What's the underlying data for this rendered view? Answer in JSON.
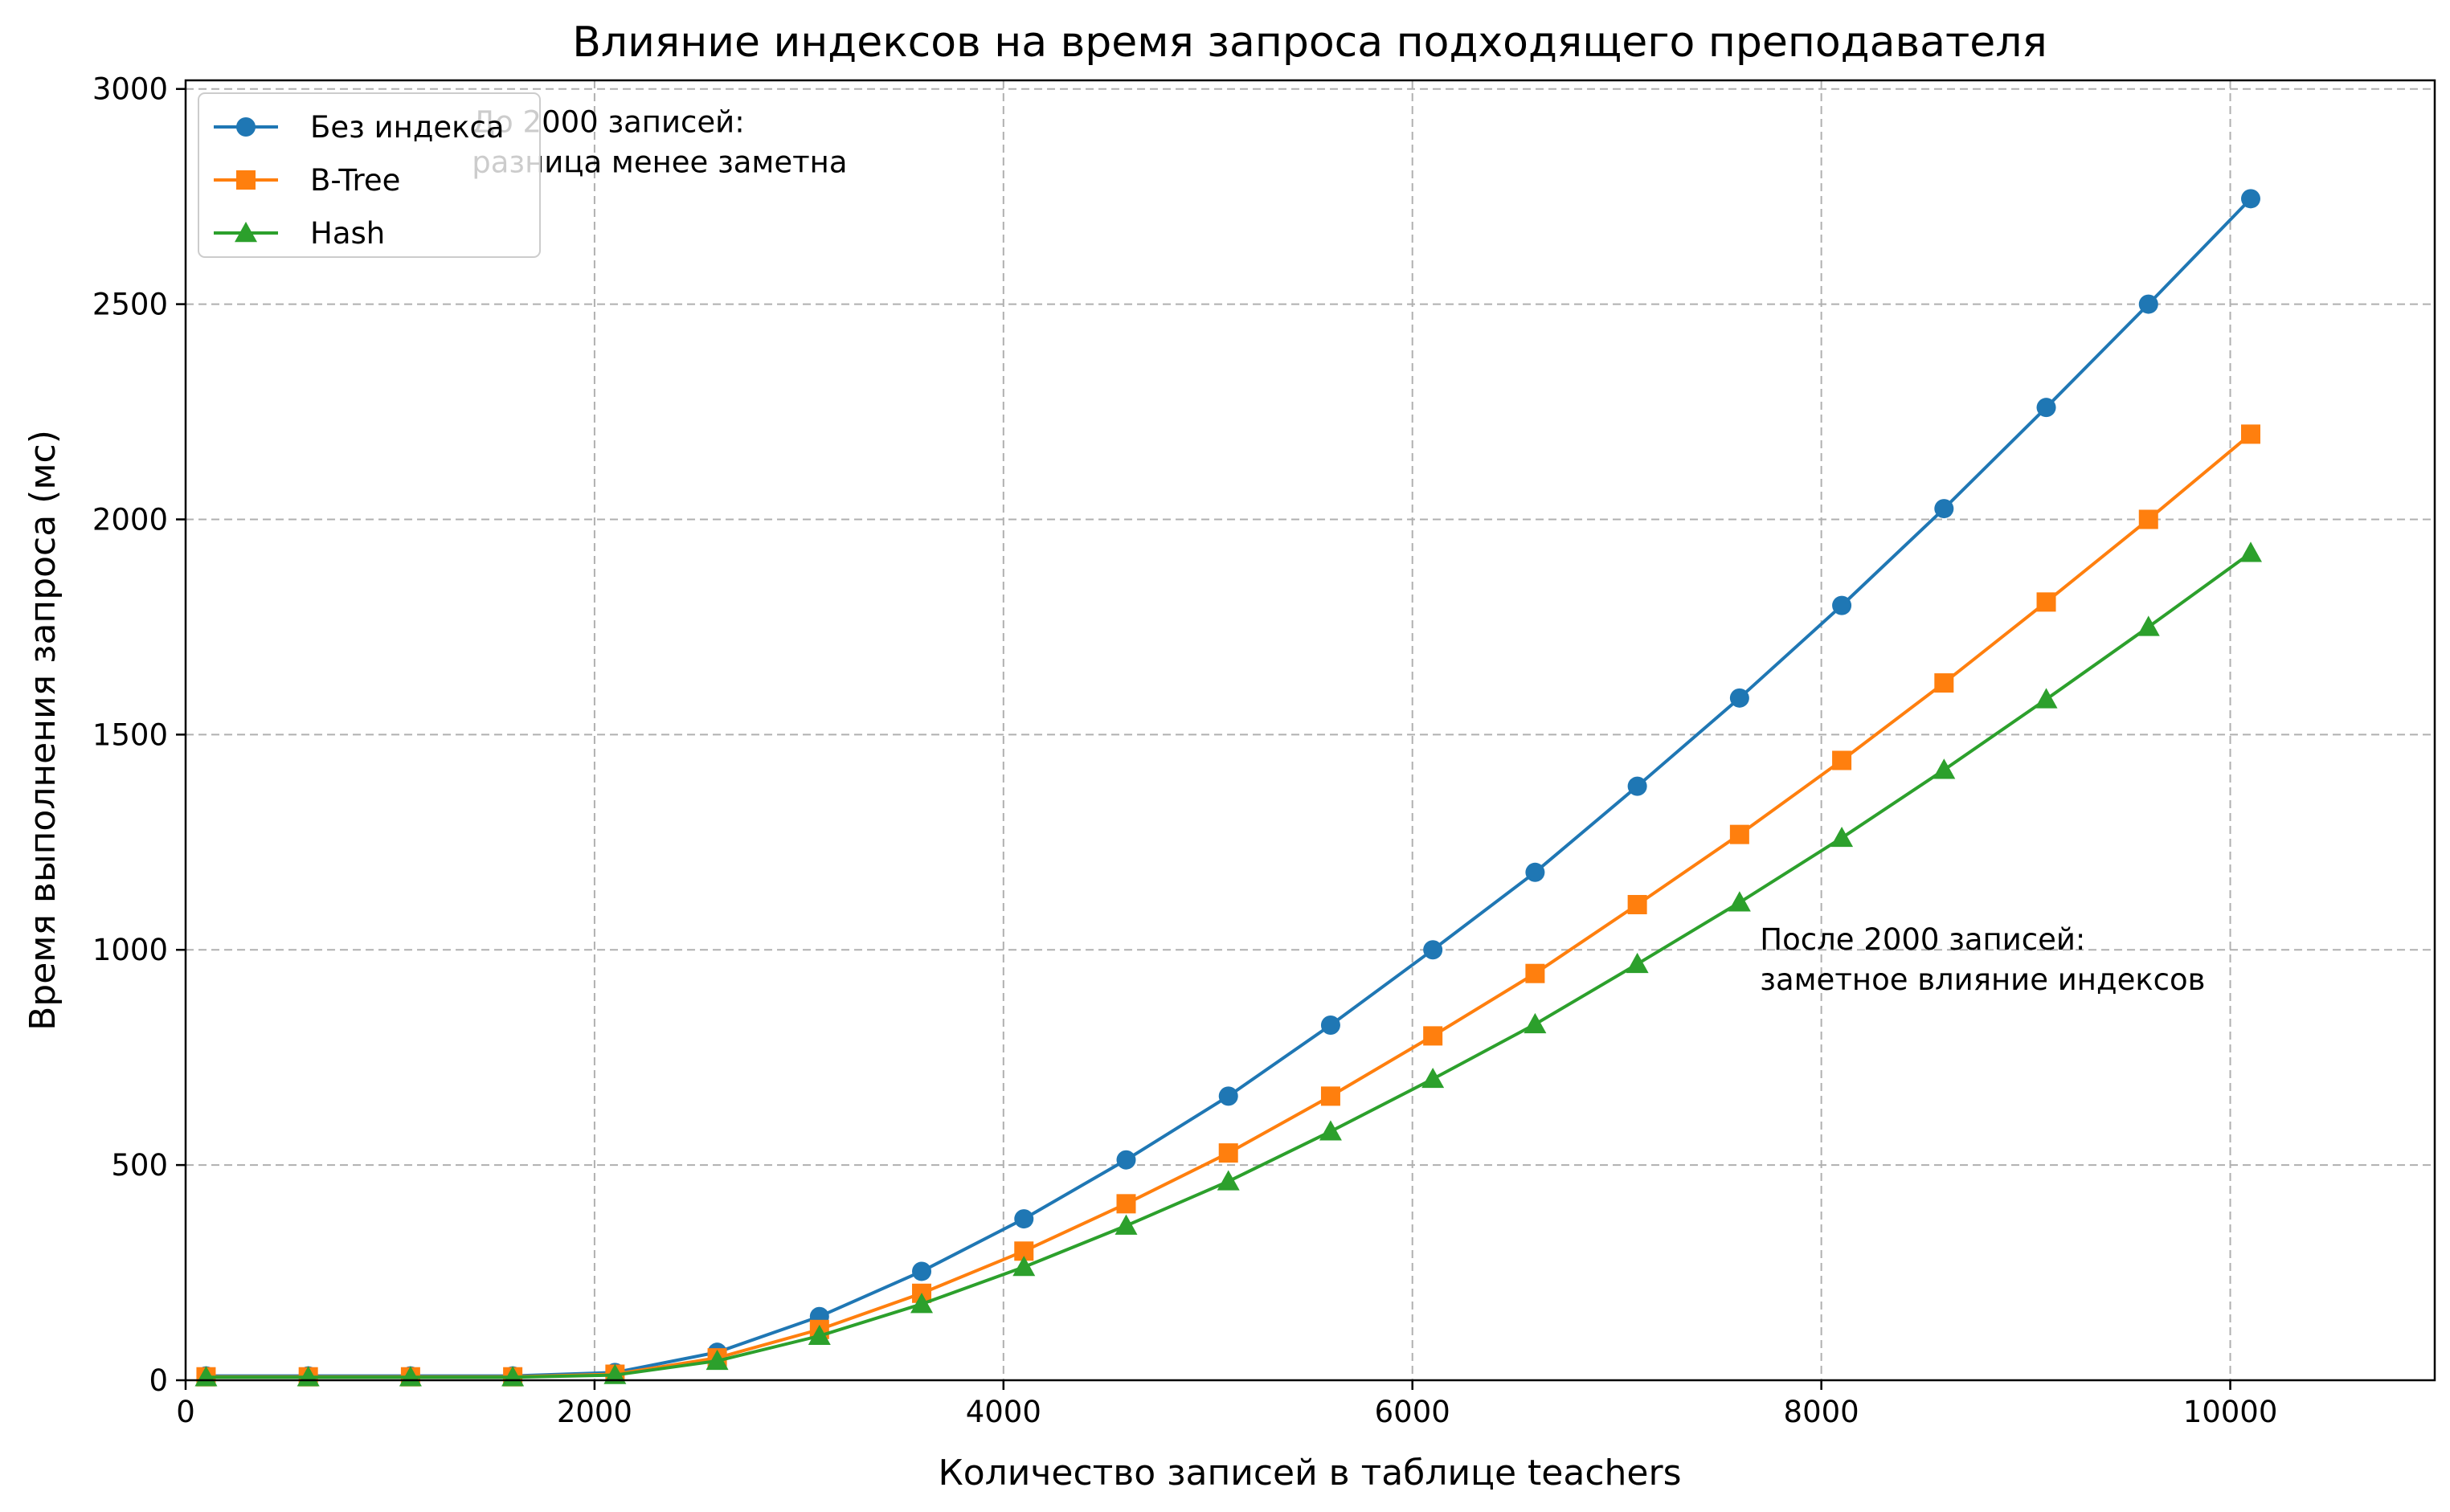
{
  "chart_data": {
    "type": "line",
    "title": "Влияние индексов на время запроса подходящего преподавателя",
    "xlabel": "Количество записей в таблице teachers",
    "ylabel": "Время выполнения запроса (мс)",
    "xlim": [
      0,
      11000
    ],
    "ylim": [
      0,
      3020
    ],
    "xticks": [
      0,
      2000,
      4000,
      6000,
      8000,
      10000
    ],
    "yticks": [
      0,
      500,
      1000,
      1500,
      2000,
      2500,
      3000
    ],
    "grid": true,
    "legend_position": "upper-left",
    "x": [
      100,
      600,
      1100,
      1600,
      2100,
      2600,
      3100,
      3600,
      4100,
      4600,
      5100,
      5600,
      6100,
      6600,
      7100,
      7600,
      8100,
      8600,
      9100,
      9600,
      10100
    ],
    "series": [
      {
        "name": "Без индекса",
        "color": "#1f77b4",
        "marker": "circle",
        "values": [
          10,
          10,
          10,
          10,
          18,
          65,
          148,
          253,
          375,
          512,
          660,
          825,
          1000,
          1180,
          1380,
          1585,
          1800,
          2025,
          2260,
          2500,
          2745
        ]
      },
      {
        "name": "B-Tree",
        "color": "#ff7f0e",
        "marker": "square",
        "values": [
          8,
          8,
          8,
          8,
          14,
          52,
          118,
          202,
          300,
          410,
          528,
          660,
          800,
          945,
          1105,
          1268,
          1440,
          1620,
          1808,
          2000,
          2198
        ]
      },
      {
        "name": "Hash",
        "color": "#2ca02c",
        "marker": "triangle",
        "values": [
          7,
          7,
          7,
          7,
          12,
          45,
          103,
          177,
          263,
          359,
          462,
          578,
          700,
          827,
          967,
          1110,
          1260,
          1418,
          1582,
          1750,
          1922
        ]
      }
    ],
    "annotations": [
      {
        "lines": [
          "До 2000 записей:",
          "разница менее заметна"
        ],
        "x": 1400,
        "y": 2900
      },
      {
        "lines": [
          "После 2000 записей:",
          "заметное влияние индексов"
        ],
        "x": 7700,
        "y": 1000
      }
    ]
  }
}
